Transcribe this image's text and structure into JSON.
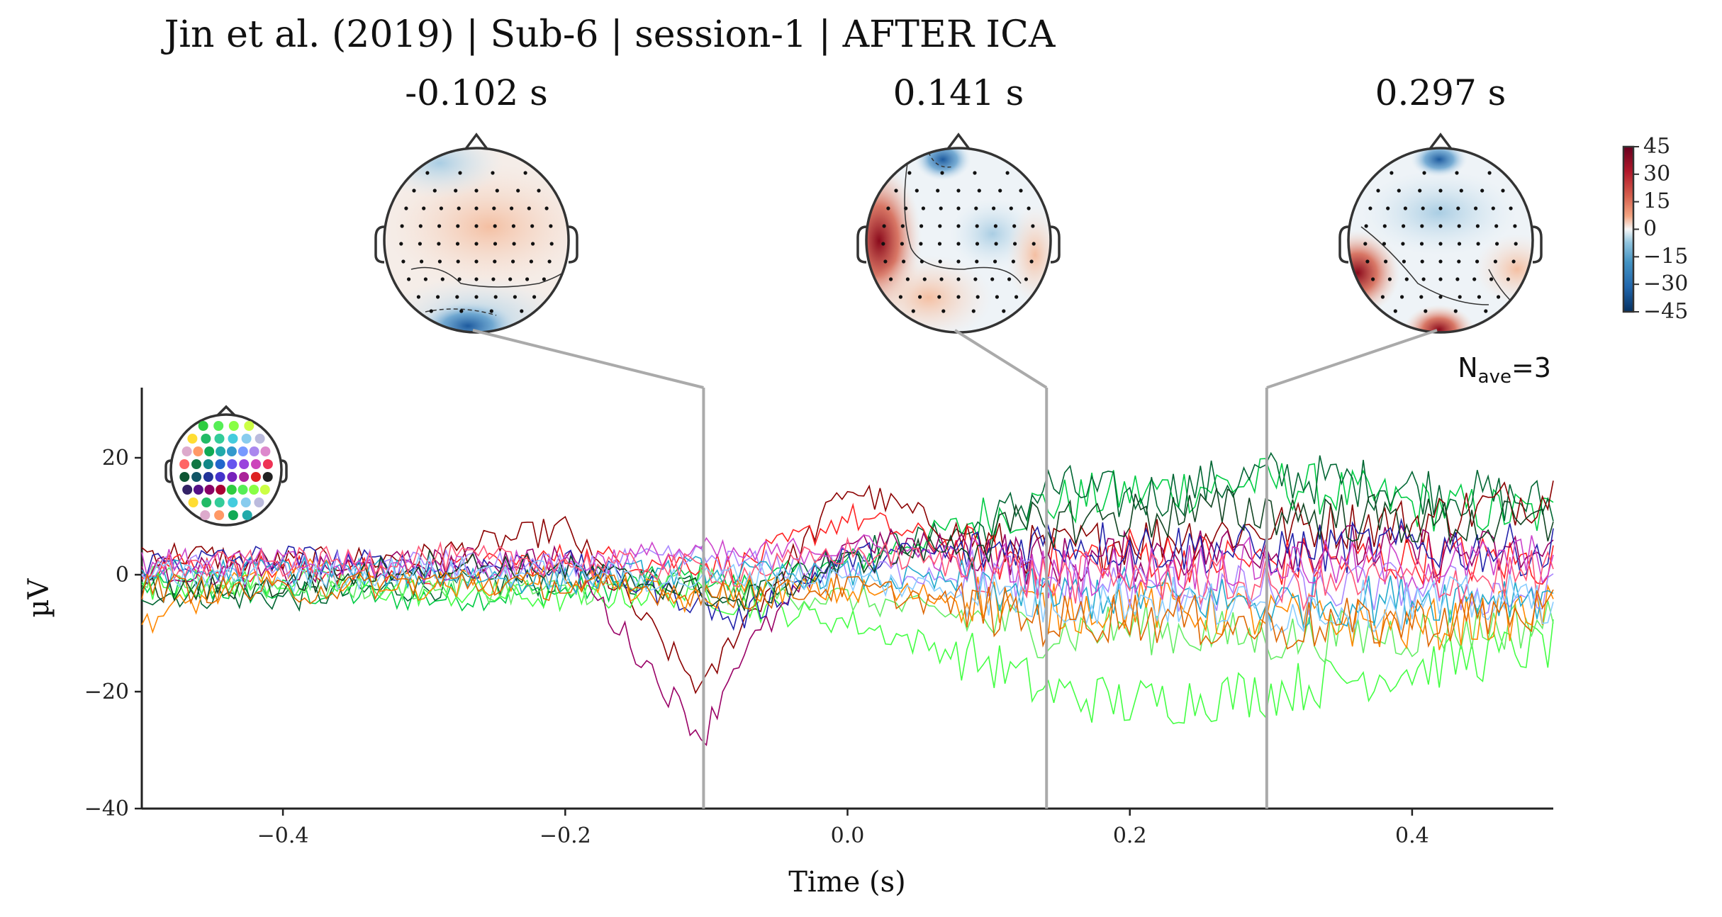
{
  "figure": {
    "title": "Jin et al. (2019) | Sub-6 | session-1 | AFTER ICA",
    "nave_base": "N",
    "nave_sub": "ave",
    "nave_value": "=3"
  },
  "topomaps": [
    {
      "time_label": "-0.102 s",
      "time": -0.102
    },
    {
      "time_label": "0.141 s",
      "time": 0.141
    },
    {
      "time_label": "0.297 s",
      "time": 0.297
    }
  ],
  "colorbar": {
    "cmap": "RdBu_r",
    "range": [
      -45,
      45
    ],
    "ticks": [
      "45",
      "30",
      "15",
      "0",
      "−15",
      "−30",
      "−45"
    ]
  },
  "chart_data": {
    "type": "line",
    "description_kind": "butterfly",
    "xlabel": "Time (s)",
    "ylabel": "µV",
    "xlim": [
      -0.5,
      0.5
    ],
    "ylim": [
      -40,
      32
    ],
    "xticks": [
      -0.4,
      -0.2,
      0.0,
      0.2,
      0.4
    ],
    "xtick_labels": [
      "−0.4",
      "−0.2",
      "0.0",
      "0.2",
      "0.4"
    ],
    "yticks": [
      20,
      0,
      -20,
      -40
    ],
    "ytick_labels": [
      "20",
      "0",
      "−20",
      "−40"
    ],
    "marker_times": [
      -0.102,
      0.141,
      0.297
    ],
    "grid": false,
    "series_count": 62,
    "x": [
      -0.5,
      -0.4,
      -0.3,
      -0.2,
      -0.102,
      -0.08,
      0.0,
      0.1,
      0.141,
      0.2,
      0.297,
      0.4,
      0.5
    ],
    "series": [
      {
        "color": "#00cc44",
        "values": [
          -2,
          -3,
          -4,
          -3,
          0,
          -2,
          2,
          10,
          12,
          14,
          16,
          12,
          10
        ]
      },
      {
        "color": "#006633",
        "values": [
          -3,
          -4,
          -2,
          -1,
          -1,
          -4,
          4,
          8,
          15,
          13,
          17,
          15,
          12
        ]
      },
      {
        "color": "#8b0000",
        "values": [
          4,
          2,
          3,
          8,
          -20,
          -10,
          15,
          5,
          4,
          6,
          8,
          9,
          14
        ]
      },
      {
        "color": "#ff2222",
        "values": [
          2,
          1,
          0,
          3,
          2,
          1,
          10,
          3,
          2,
          4,
          2,
          3,
          2
        ]
      },
      {
        "color": "#44ff44",
        "values": [
          -2,
          -1,
          -3,
          -4,
          -3,
          -5,
          -8,
          -15,
          -20,
          -22,
          -20,
          -16,
          -12
        ]
      },
      {
        "color": "#66ee66",
        "values": [
          -1,
          -2,
          -2,
          -3,
          -1,
          -3,
          -4,
          -8,
          -10,
          -9,
          -11,
          -10,
          -8
        ]
      },
      {
        "color": "#990066",
        "values": [
          1,
          0,
          2,
          3,
          -28,
          -15,
          6,
          4,
          2,
          3,
          5,
          4,
          3
        ]
      },
      {
        "color": "#2222aa",
        "values": [
          2,
          3,
          1,
          2,
          -5,
          -8,
          3,
          4,
          6,
          5,
          4,
          5,
          4
        ]
      },
      {
        "color": "#ff8800",
        "values": [
          -8,
          1,
          -2,
          0,
          -5,
          -2,
          -3,
          -4,
          -6,
          -5,
          -7,
          -9,
          -6
        ]
      },
      {
        "color": "#aa88ff",
        "values": [
          1,
          1,
          2,
          1,
          3,
          2,
          1,
          0,
          -1,
          -2,
          -3,
          -2,
          -4
        ]
      },
      {
        "color": "#22aacc",
        "values": [
          0,
          1,
          0,
          -1,
          1,
          0,
          0,
          -2,
          -4,
          -3,
          -5,
          -4,
          -3
        ]
      },
      {
        "color": "#cc44cc",
        "values": [
          2,
          2,
          1,
          2,
          4,
          3,
          5,
          2,
          0,
          1,
          2,
          1,
          3
        ]
      },
      {
        "color": "#114422",
        "values": [
          -3,
          -2,
          2,
          1,
          -3,
          -5,
          2,
          6,
          9,
          10,
          11,
          9,
          8
        ]
      },
      {
        "color": "#ff5577",
        "values": [
          1,
          2,
          3,
          2,
          1,
          0,
          4,
          1,
          -1,
          0,
          -2,
          -1,
          0
        ]
      },
      {
        "color": "#88ccff",
        "values": [
          0,
          -1,
          1,
          0,
          -1,
          0,
          -1,
          -3,
          -5,
          -4,
          -6,
          -5,
          -4
        ]
      },
      {
        "color": "#dd6600",
        "values": [
          -2,
          -3,
          -1,
          -2,
          -3,
          -4,
          -2,
          -6,
          -8,
          -7,
          -9,
          -8,
          -6
        ]
      }
    ]
  }
}
